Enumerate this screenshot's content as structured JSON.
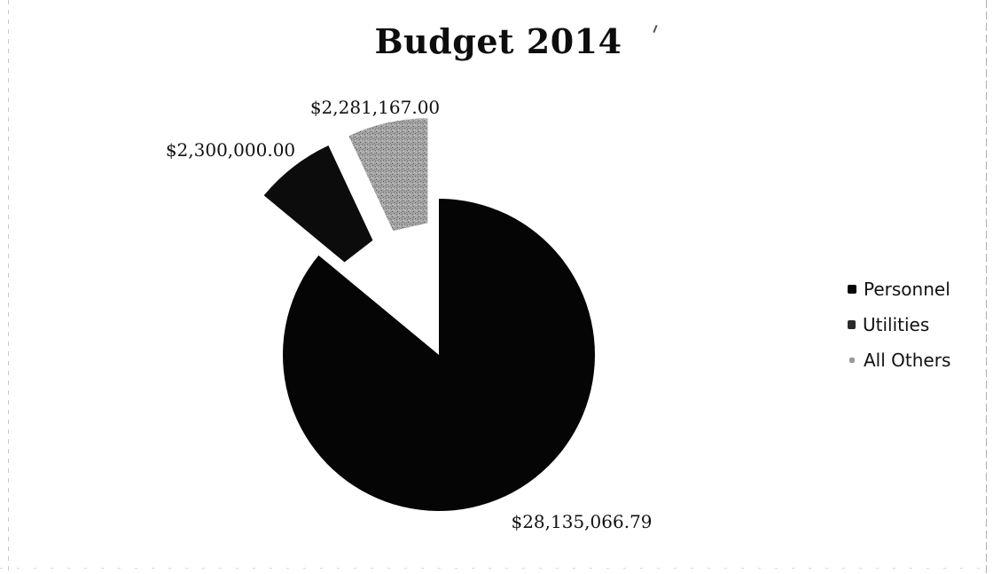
{
  "chart_data": {
    "type": "pie",
    "title": "Budget 2014",
    "series": [
      {
        "name": "Personnel",
        "value": 28135066.79,
        "label": "$28,135,066.79",
        "color": "#050505"
      },
      {
        "name": "Utilities",
        "value": 2300000.0,
        "label": "$2,300,000.00",
        "color": "#0c0c0c"
      },
      {
        "name": "All Others",
        "value": 2281167.0,
        "label": "$2,281,167.00",
        "color": "#9a9a9a"
      }
    ],
    "exploded": true,
    "legend_position": "right"
  }
}
